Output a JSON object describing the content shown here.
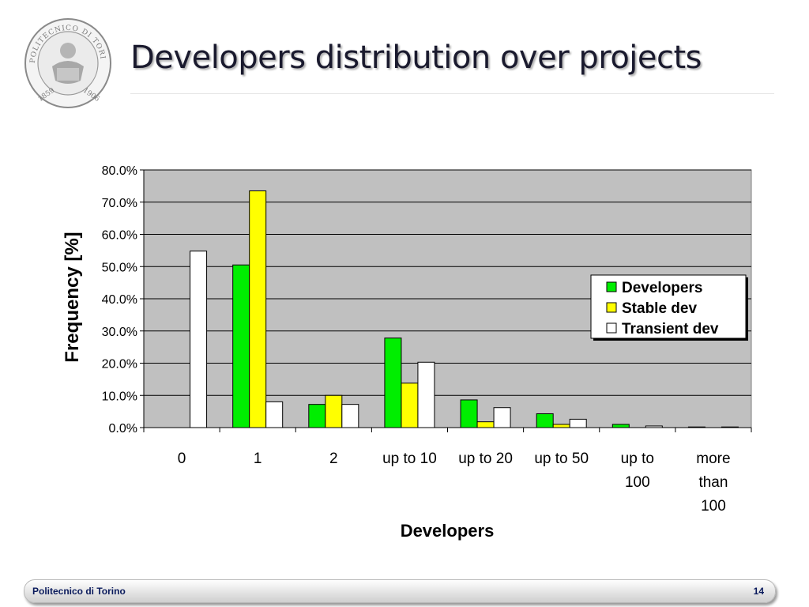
{
  "slide": {
    "title": "Developers distribution over projects",
    "footer_left": "Politecnico di Torino",
    "page_number": "14",
    "logo": {
      "ring_text_top": "POLITECNICO DI TORINO",
      "year_left": "1859",
      "year_right": "1906"
    }
  },
  "chart_data": {
    "type": "bar",
    "title": "",
    "xlabel": "Developers",
    "ylabel": "Frequency [%]",
    "categories": [
      "0",
      "1",
      "2",
      "up to 10",
      "up to 20",
      "up to 50",
      "up to 100",
      "more than 100"
    ],
    "category_lines": [
      [
        "0"
      ],
      [
        "1"
      ],
      [
        "2"
      ],
      [
        "up to 10"
      ],
      [
        "up to 20"
      ],
      [
        "up to 50"
      ],
      [
        "up to",
        "100"
      ],
      [
        "more",
        "than",
        "100"
      ]
    ],
    "series": [
      {
        "name": "Developers",
        "color": "#00ee00",
        "values": [
          0,
          50.5,
          7.2,
          27.8,
          8.6,
          4.3,
          1.0,
          0.2
        ]
      },
      {
        "name": "Stable dev",
        "color": "#ffff00",
        "values": [
          0,
          73.5,
          10.0,
          13.8,
          1.8,
          1.0,
          0,
          0
        ]
      },
      {
        "name": "Transient dev",
        "color": "#ffffff",
        "values": [
          54.8,
          8.0,
          7.2,
          20.3,
          6.2,
          2.6,
          0.5,
          0.2
        ]
      }
    ],
    "yticks": [
      "0.0%",
      "10.0%",
      "20.0%",
      "30.0%",
      "40.0%",
      "50.0%",
      "60.0%",
      "70.0%",
      "80.0%"
    ],
    "ylim": [
      0,
      80
    ],
    "grid": true,
    "plot_background": "#c0c0c0",
    "legend_position": "right"
  }
}
